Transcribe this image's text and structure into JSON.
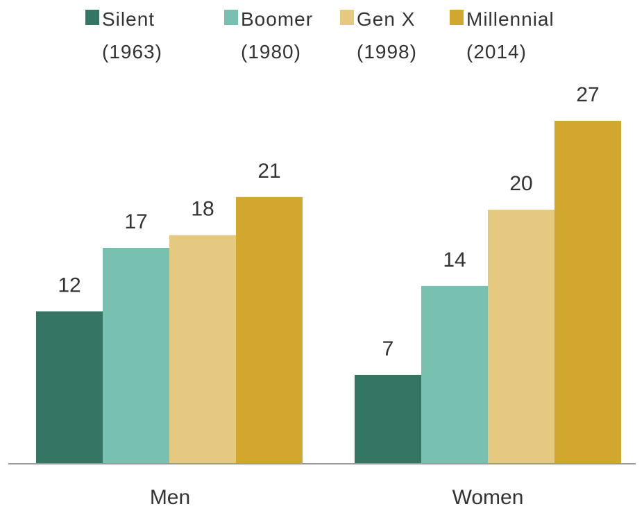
{
  "chart_data": {
    "type": "bar",
    "categories": [
      "Men",
      "Women"
    ],
    "series": [
      {
        "name": "Silent",
        "sublabel": "(1963)",
        "color": "#357564",
        "values": [
          12,
          7
        ]
      },
      {
        "name": "Boomer",
        "sublabel": "(1980)",
        "color": "#78c0af",
        "values": [
          17,
          14
        ]
      },
      {
        "name": "Gen X",
        "sublabel": "(1998)",
        "color": "#e6c981",
        "values": [
          18,
          20
        ]
      },
      {
        "name": "Millennial",
        "sublabel": "(2014)",
        "color": "#d2a72e",
        "values": [
          21,
          27
        ]
      }
    ],
    "ylim": [
      0,
      27
    ],
    "grid": false,
    "legend_position": "top",
    "data_labels": true
  }
}
